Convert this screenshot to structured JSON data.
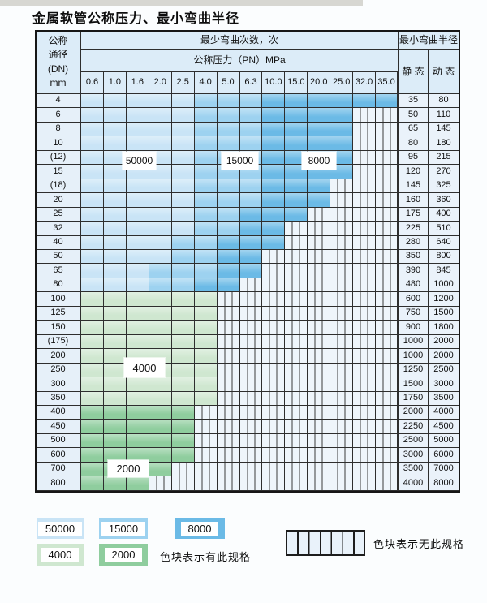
{
  "title": "金属软管公称压力、最小弯曲半径",
  "colors": {
    "blue_50000": "#c9e4f6",
    "blue_15000": "#9dd2f0",
    "blue_8000": "#6bbae6",
    "green_4000": "#cfe7d0",
    "green_2000": "#8fcd9e",
    "hatch_bg": "#eef5fb",
    "header_bg": "#dcecf8"
  },
  "table": {
    "header": {
      "dn_lines": [
        "公称",
        "通径",
        "(DN)",
        "mm"
      ],
      "bend_times": "最少弯曲次数，次",
      "pressure_title": "公称压力（PN）MPa",
      "min_radius": "最小弯曲半径",
      "static_label": "静 态",
      "dynamic_label": "动 态",
      "pressures": [
        "0.6",
        "1.0",
        "1.6",
        "2.0",
        "2.5",
        "4.0",
        "5.0",
        "6.3",
        "10.0",
        "15.0",
        "20.0",
        "25.0",
        "32.0",
        "35.0"
      ]
    },
    "overlay_labels": {
      "blue_light": "50000",
      "blue_medium": "15000",
      "blue_dark": "8000",
      "green_light": "4000",
      "green_dark": "2000"
    },
    "rows": [
      {
        "dn": "4",
        "static": "35",
        "dynamic": "80",
        "zone": "blue",
        "last_colored_col": 13,
        "light_end": 4,
        "medium_end": 7
      },
      {
        "dn": "6",
        "static": "50",
        "dynamic": "110",
        "zone": "blue",
        "last_colored_col": 11,
        "light_end": 4,
        "medium_end": 7
      },
      {
        "dn": "8",
        "static": "65",
        "dynamic": "145",
        "zone": "blue",
        "last_colored_col": 11,
        "light_end": 4,
        "medium_end": 7
      },
      {
        "dn": "10",
        "static": "80",
        "dynamic": "180",
        "zone": "blue",
        "last_colored_col": 11,
        "light_end": 4,
        "medium_end": 7
      },
      {
        "dn": "(12)",
        "static": "95",
        "dynamic": "215",
        "zone": "blue",
        "last_colored_col": 11,
        "light_end": 4,
        "medium_end": 7
      },
      {
        "dn": "15",
        "static": "120",
        "dynamic": "270",
        "zone": "blue",
        "last_colored_col": 11,
        "light_end": 4,
        "medium_end": 7
      },
      {
        "dn": "(18)",
        "static": "145",
        "dynamic": "325",
        "zone": "blue",
        "last_colored_col": 10,
        "light_end": 4,
        "medium_end": 7
      },
      {
        "dn": "20",
        "static": "160",
        "dynamic": "360",
        "zone": "blue",
        "last_colored_col": 10,
        "light_end": 4,
        "medium_end": 7
      },
      {
        "dn": "25",
        "static": "175",
        "dynamic": "400",
        "zone": "blue",
        "last_colored_col": 9,
        "light_end": 4,
        "medium_end": 6
      },
      {
        "dn": "32",
        "static": "225",
        "dynamic": "510",
        "zone": "blue",
        "last_colored_col": 8,
        "light_end": 4,
        "medium_end": 6
      },
      {
        "dn": "40",
        "static": "280",
        "dynamic": "640",
        "zone": "blue",
        "last_colored_col": 8,
        "light_end": 3,
        "medium_end": 5
      },
      {
        "dn": "50",
        "static": "350",
        "dynamic": "800",
        "zone": "blue",
        "last_colored_col": 7,
        "light_end": 3,
        "medium_end": 5
      },
      {
        "dn": "65",
        "static": "390",
        "dynamic": "845",
        "zone": "blue",
        "last_colored_col": 7,
        "light_end": 2,
        "medium_end": 5
      },
      {
        "dn": "80",
        "static": "480",
        "dynamic": "1000",
        "zone": "blue",
        "last_colored_col": 6,
        "light_end": 2,
        "medium_end": 4
      },
      {
        "dn": "100",
        "static": "600",
        "dynamic": "1200",
        "zone": "green-light",
        "last_colored_col": 5
      },
      {
        "dn": "125",
        "static": "750",
        "dynamic": "1500",
        "zone": "green-light",
        "last_colored_col": 5
      },
      {
        "dn": "150",
        "static": "900",
        "dynamic": "1800",
        "zone": "green-light",
        "last_colored_col": 5
      },
      {
        "dn": "(175)",
        "static": "1000",
        "dynamic": "2000",
        "zone": "green-light",
        "last_colored_col": 5
      },
      {
        "dn": "200",
        "static": "1000",
        "dynamic": "2000",
        "zone": "green-light",
        "last_colored_col": 5
      },
      {
        "dn": "250",
        "static": "1250",
        "dynamic": "2500",
        "zone": "green-light",
        "last_colored_col": 5
      },
      {
        "dn": "300",
        "static": "1500",
        "dynamic": "3000",
        "zone": "green-light",
        "last_colored_col": 5
      },
      {
        "dn": "350",
        "static": "1750",
        "dynamic": "3500",
        "zone": "green-light",
        "last_colored_col": 5
      },
      {
        "dn": "400",
        "static": "2000",
        "dynamic": "4000",
        "zone": "green-dark",
        "last_colored_col": 4
      },
      {
        "dn": "450",
        "static": "2250",
        "dynamic": "4500",
        "zone": "green-dark",
        "last_colored_col": 4
      },
      {
        "dn": "500",
        "static": "2500",
        "dynamic": "5000",
        "zone": "green-dark",
        "last_colored_col": 4
      },
      {
        "dn": "600",
        "static": "3000",
        "dynamic": "6000",
        "zone": "green-dark",
        "last_colored_col": 4
      },
      {
        "dn": "700",
        "static": "3500",
        "dynamic": "7000",
        "zone": "green-dark",
        "last_colored_col": 3
      },
      {
        "dn": "800",
        "static": "4000",
        "dynamic": "8000",
        "zone": "green-dark",
        "last_colored_col": 2
      }
    ]
  },
  "legend": {
    "items": [
      {
        "label": "50000",
        "color": "#c9e4f6"
      },
      {
        "label": "15000",
        "color": "#9dd2f0"
      },
      {
        "label": "8000",
        "color": "#6bbae6"
      },
      {
        "label": "4000",
        "color": "#cfe7d0"
      },
      {
        "label": "2000",
        "color": "#8fcd9e"
      }
    ],
    "note_available": "色块表示有此规格",
    "note_unavailable": "色块表示无此规格"
  }
}
